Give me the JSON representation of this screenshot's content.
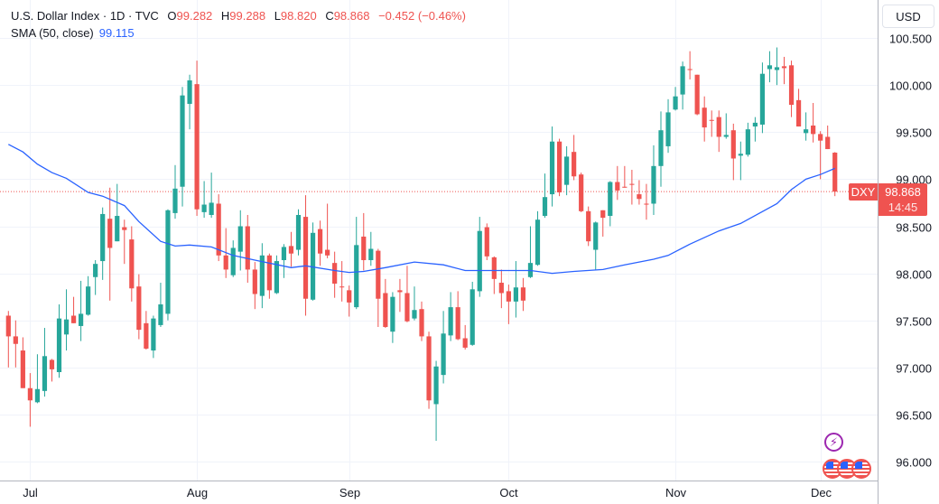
{
  "header": {
    "symbol_line": "U.S. Dollar Index · 1D · TVC",
    "o_label": "O",
    "o": "99.282",
    "h_label": "H",
    "h": "99.288",
    "l_label": "L",
    "l": "98.820",
    "c_label": "C",
    "c": "98.868",
    "change": "−0.452 (−0.46%)",
    "sma_label": "SMA (50, close)",
    "sma_value": "99.115"
  },
  "price_axis": {
    "currency_button": "USD",
    "ticks": [
      "100.500",
      "100.000",
      "99.500",
      "99.000",
      "98.500",
      "98.000",
      "97.500",
      "97.000",
      "96.500",
      "96.000"
    ]
  },
  "time_axis": {
    "labels": [
      {
        "text": "Jul",
        "date": "07-01"
      },
      {
        "text": "Aug",
        "date": "08-01"
      },
      {
        "text": "Sep",
        "date": "09-01"
      },
      {
        "text": "Oct",
        "date": "10-01"
      },
      {
        "text": "Nov",
        "date": "11-03"
      },
      {
        "text": "Dec",
        "date": "12-01"
      }
    ]
  },
  "last_price": {
    "ticker": "DXY",
    "price": "98.868",
    "countdown": "14:45"
  },
  "events": [
    {
      "icon": "lightning-icon"
    },
    {
      "icon": "us-flag-icon"
    },
    {
      "icon": "us-flag-icon"
    },
    {
      "icon": "us-flag-icon"
    }
  ],
  "colors": {
    "up": "#26a69a",
    "down": "#ef5350",
    "sma": "#2962ff",
    "grid": "#f0f3fa"
  },
  "chart_data": {
    "type": "candlestick",
    "title": "U.S. Dollar Index · 1D · TVC",
    "ylim": [
      95.8,
      100.9
    ],
    "grid": true,
    "columns": [
      "date",
      "open",
      "high",
      "low",
      "close"
    ],
    "candles": [
      [
        "06-26",
        97.55,
        97.6,
        97.0,
        97.33
      ],
      [
        "06-27",
        97.33,
        97.5,
        97.0,
        97.25
      ],
      [
        "06-30",
        97.18,
        97.32,
        96.78,
        96.78
      ],
      [
        "07-01",
        96.78,
        96.94,
        96.37,
        96.65
      ],
      [
        "07-02",
        96.63,
        97.14,
        96.62,
        96.77
      ],
      [
        "07-03",
        96.75,
        97.42,
        96.69,
        97.12
      ],
      [
        "07-04",
        97.08,
        97.09,
        96.85,
        96.98
      ],
      [
        "07-07",
        96.95,
        97.67,
        96.89,
        97.52
      ],
      [
        "07-08",
        97.35,
        97.83,
        97.18,
        97.51
      ],
      [
        "07-09",
        97.55,
        97.75,
        97.47,
        97.47
      ],
      [
        "07-10",
        97.44,
        97.92,
        97.28,
        97.57
      ],
      [
        "07-11",
        97.56,
        97.97,
        97.55,
        97.86
      ],
      [
        "07-14",
        97.96,
        98.14,
        97.77,
        98.1
      ],
      [
        "07-15",
        98.13,
        98.7,
        97.93,
        98.63
      ],
      [
        "07-16",
        98.58,
        98.91,
        97.71,
        98.27
      ],
      [
        "07-17",
        98.34,
        98.95,
        98.34,
        98.61
      ],
      [
        "07-18",
        98.49,
        98.57,
        98.1,
        98.46
      ],
      [
        "07-21",
        98.36,
        98.5,
        97.7,
        97.84
      ],
      [
        "07-22",
        97.86,
        97.99,
        97.3,
        97.4
      ],
      [
        "07-23",
        97.47,
        97.6,
        97.19,
        97.2
      ],
      [
        "07-24",
        97.18,
        97.55,
        97.1,
        97.52
      ],
      [
        "07-25",
        97.45,
        97.9,
        97.43,
        97.67
      ],
      [
        "07-28",
        97.57,
        98.68,
        97.5,
        98.67
      ],
      [
        "07-29",
        98.64,
        99.15,
        98.58,
        98.9
      ],
      [
        "07-30",
        98.92,
        99.98,
        98.71,
        99.89
      ],
      [
        "07-31",
        99.8,
        100.11,
        99.53,
        100.05
      ],
      [
        "08-01",
        100.01,
        100.26,
        98.61,
        98.68
      ],
      [
        "08-04",
        98.65,
        98.98,
        98.59,
        98.73
      ],
      [
        "08-05",
        98.62,
        99.07,
        98.59,
        98.75
      ],
      [
        "08-06",
        98.74,
        98.84,
        98.13,
        98.19
      ],
      [
        "08-07",
        98.19,
        98.48,
        97.95,
        98.04
      ],
      [
        "08-08",
        97.98,
        98.35,
        97.96,
        98.27
      ],
      [
        "08-11",
        98.23,
        98.67,
        98.03,
        98.5
      ],
      [
        "08-12",
        98.5,
        98.62,
        97.9,
        98.04
      ],
      [
        "08-13",
        98.04,
        98.12,
        97.62,
        97.78
      ],
      [
        "08-14",
        97.76,
        98.32,
        97.63,
        98.19
      ],
      [
        "08-15",
        98.19,
        98.21,
        97.73,
        97.82
      ],
      [
        "08-18",
        97.79,
        98.19,
        97.78,
        98.13
      ],
      [
        "08-19",
        98.14,
        98.31,
        97.95,
        98.28
      ],
      [
        "08-20",
        98.29,
        98.44,
        98.07,
        98.21
      ],
      [
        "08-21",
        98.25,
        98.68,
        98.19,
        98.62
      ],
      [
        "08-22",
        98.6,
        98.83,
        97.55,
        97.73
      ],
      [
        "08-25",
        97.72,
        98.54,
        97.71,
        98.43
      ],
      [
        "08-26",
        98.47,
        98.56,
        98.08,
        98.21
      ],
      [
        "08-27",
        98.25,
        98.74,
        98.16,
        98.19
      ],
      [
        "08-28",
        98.11,
        98.23,
        97.74,
        97.89
      ],
      [
        "08-29",
        97.86,
        98.13,
        97.7,
        97.85
      ],
      [
        "09-01",
        97.82,
        97.87,
        97.54,
        97.69
      ],
      [
        "09-02",
        97.64,
        98.6,
        97.62,
        98.3
      ],
      [
        "09-03",
        98.39,
        98.64,
        98.03,
        98.14
      ],
      [
        "09-04",
        98.14,
        98.44,
        98.08,
        98.26
      ],
      [
        "09-05",
        98.24,
        98.26,
        97.43,
        97.73
      ],
      [
        "09-08",
        97.79,
        97.94,
        97.42,
        97.43
      ],
      [
        "09-09",
        97.38,
        97.8,
        97.26,
        97.75
      ],
      [
        "09-10",
        97.82,
        97.94,
        97.59,
        97.8
      ],
      [
        "09-11",
        97.79,
        98.08,
        97.48,
        97.49
      ],
      [
        "09-12",
        97.52,
        97.86,
        97.5,
        97.61
      ],
      [
        "09-15",
        97.62,
        97.7,
        97.28,
        97.33
      ],
      [
        "09-16",
        97.33,
        97.38,
        96.56,
        96.65
      ],
      [
        "09-17",
        96.61,
        97.07,
        96.22,
        97.01
      ],
      [
        "09-18",
        96.92,
        97.6,
        96.83,
        97.36
      ],
      [
        "09-19",
        97.34,
        97.8,
        97.28,
        97.64
      ],
      [
        "09-22",
        97.64,
        97.81,
        97.29,
        97.3
      ],
      [
        "09-23",
        97.31,
        97.45,
        97.19,
        97.21
      ],
      [
        "09-24",
        97.24,
        97.91,
        97.23,
        97.83
      ],
      [
        "09-25",
        97.81,
        98.6,
        97.75,
        98.45
      ],
      [
        "09-26",
        98.49,
        98.53,
        98.14,
        98.18
      ],
      [
        "09-29",
        98.17,
        98.18,
        97.78,
        97.94
      ],
      [
        "09-30",
        97.9,
        98.04,
        97.63,
        97.79
      ],
      [
        "10-01",
        97.81,
        97.88,
        97.46,
        97.7
      ],
      [
        "10-02",
        97.7,
        98.13,
        97.53,
        97.85
      ],
      [
        "10-03",
        97.85,
        97.95,
        97.6,
        97.71
      ],
      [
        "10-06",
        97.96,
        98.5,
        97.95,
        98.11
      ],
      [
        "10-07",
        98.09,
        98.66,
        98.08,
        98.57
      ],
      [
        "10-08",
        98.61,
        99.06,
        98.59,
        98.81
      ],
      [
        "10-09",
        98.84,
        99.56,
        98.71,
        99.4
      ],
      [
        "10-10",
        99.4,
        99.43,
        98.82,
        98.86
      ],
      [
        "10-13",
        98.94,
        99.35,
        98.83,
        99.24
      ],
      [
        "10-14",
        99.29,
        99.47,
        98.99,
        99.03
      ],
      [
        "10-15",
        99.05,
        99.07,
        98.65,
        98.66
      ],
      [
        "10-16",
        98.66,
        98.71,
        98.29,
        98.34
      ],
      [
        "10-17",
        98.25,
        98.55,
        98.04,
        98.54
      ],
      [
        "10-20",
        98.67,
        98.67,
        98.39,
        98.59
      ],
      [
        "10-21",
        98.61,
        98.98,
        98.5,
        98.97
      ],
      [
        "10-22",
        98.97,
        99.14,
        98.78,
        98.88
      ],
      [
        "10-23",
        98.92,
        99.14,
        98.91,
        98.91
      ],
      [
        "10-24",
        98.95,
        99.1,
        98.73,
        98.94
      ],
      [
        "10-27",
        98.84,
        98.99,
        98.73,
        98.79
      ],
      [
        "10-28",
        98.74,
        98.95,
        98.57,
        98.73
      ],
      [
        "10-29",
        98.74,
        99.36,
        98.62,
        99.14
      ],
      [
        "10-30",
        99.14,
        99.72,
        98.92,
        99.52
      ],
      [
        "10-31",
        99.35,
        99.85,
        99.28,
        99.71
      ],
      [
        "11-03",
        99.74,
        99.98,
        99.73,
        99.88
      ],
      [
        "11-04",
        99.9,
        100.25,
        99.74,
        100.2
      ],
      [
        "11-05",
        100.17,
        100.36,
        100.06,
        100.16
      ],
      [
        "11-06",
        100.11,
        100.11,
        99.68,
        99.69
      ],
      [
        "11-07",
        99.76,
        99.88,
        99.4,
        99.55
      ],
      [
        "11-10",
        99.63,
        99.73,
        99.45,
        99.62
      ],
      [
        "11-11",
        99.66,
        99.73,
        99.29,
        99.45
      ],
      [
        "11-12",
        99.45,
        99.7,
        99.43,
        99.47
      ],
      [
        "11-13",
        99.52,
        99.59,
        98.99,
        99.22
      ],
      [
        "11-14",
        99.25,
        99.4,
        98.99,
        99.27
      ],
      [
        "11-17",
        99.26,
        99.6,
        99.24,
        99.53
      ],
      [
        "11-18",
        99.56,
        99.66,
        99.4,
        99.6
      ],
      [
        "11-19",
        99.58,
        100.24,
        99.49,
        100.12
      ],
      [
        "11-20",
        100.17,
        100.36,
        100.03,
        100.21
      ],
      [
        "11-21",
        100.16,
        100.4,
        100.0,
        100.19
      ],
      [
        "11-24",
        100.2,
        100.3,
        100.01,
        100.18
      ],
      [
        "11-25",
        100.21,
        100.26,
        99.66,
        99.79
      ],
      [
        "11-26",
        99.84,
        99.96,
        99.56,
        99.56
      ],
      [
        "11-27",
        99.49,
        99.71,
        99.41,
        99.53
      ],
      [
        "11-28",
        99.57,
        99.81,
        99.39,
        99.48
      ],
      [
        "12-01",
        99.48,
        99.51,
        99.0,
        99.41
      ],
      [
        "12-02",
        99.45,
        99.57,
        99.32,
        99.32
      ],
      [
        "12-03",
        99.282,
        99.288,
        98.82,
        98.868
      ]
    ],
    "sma": {
      "name": "SMA (50, close)",
      "points": [
        [
          "06-26",
          99.37
        ],
        [
          "06-30",
          99.29
        ],
        [
          "07-02",
          99.16
        ],
        [
          "07-04",
          99.07
        ],
        [
          "07-08",
          99.01
        ],
        [
          "07-11",
          98.86
        ],
        [
          "07-15",
          98.82
        ],
        [
          "07-18",
          98.72
        ],
        [
          "07-22",
          98.55
        ],
        [
          "07-25",
          98.34
        ],
        [
          "07-29",
          98.29
        ],
        [
          "07-31",
          98.3
        ],
        [
          "08-05",
          98.28
        ],
        [
          "08-07",
          98.22
        ],
        [
          "08-08",
          98.19
        ],
        [
          "08-13",
          98.14
        ],
        [
          "08-20",
          98.06
        ],
        [
          "08-22",
          98.08
        ],
        [
          "08-28",
          98.03
        ],
        [
          "09-01",
          98.01
        ],
        [
          "09-03",
          98.02
        ],
        [
          "09-08",
          98.06
        ],
        [
          "09-12",
          98.12
        ],
        [
          "09-18",
          98.09
        ],
        [
          "09-23",
          98.03
        ],
        [
          "09-30",
          98.03
        ],
        [
          "10-06",
          98.03
        ],
        [
          "10-09",
          98.0
        ],
        [
          "10-14",
          98.02
        ],
        [
          "10-20",
          98.04
        ],
        [
          "10-23",
          98.09
        ],
        [
          "10-29",
          98.15
        ],
        [
          "10-31",
          98.19
        ],
        [
          "11-05",
          98.31
        ],
        [
          "11-11",
          98.45
        ],
        [
          "11-14",
          98.53
        ],
        [
          "11-21",
          98.74
        ],
        [
          "11-25",
          98.89
        ],
        [
          "11-27",
          99.0
        ],
        [
          "12-01",
          99.05
        ],
        [
          "12-03",
          99.115
        ]
      ]
    }
  }
}
